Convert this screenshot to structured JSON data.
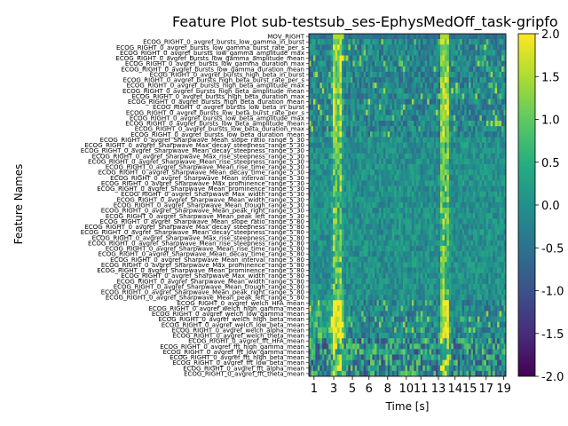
{
  "chart_data": {
    "type": "heatmap",
    "title": "Feature Plot sub-testsub_ses-EphysMedOff_task-gripfo",
    "xlabel": "Time [s]",
    "ylabel": "Feature Names",
    "x_ticks": [
      "1",
      "3",
      "5",
      "6",
      "8",
      "10",
      "11",
      "13",
      "14",
      "15",
      "17",
      "19"
    ],
    "x_range": [
      0.5,
      19.5
    ],
    "colorbar": {
      "min": -2.0,
      "max": 2.0,
      "ticks": [
        "2.0",
        "1.5",
        "1.0",
        "0.5",
        "0.0",
        "-0.5",
        "-1.0",
        "-1.5",
        "-2.0"
      ],
      "colormap": "viridis"
    },
    "hot_columns": [
      3,
      3.5,
      13.4,
      13.8
    ],
    "features": [
      "MOV_RIGHT",
      "ECOG_RIGHT_0_avgref_bursts_low_gamma_in_burst",
      "ECOG_RIGHT_0_avgref_bursts_low_gamma_burst_rate_per_s",
      "ECOG_RIGHT_0_avgref_bursts_low_gamma_amplitude_max",
      "ECOG_RIGHT_0_avgref_bursts_low_gamma_amplitude_mean",
      "ECOG_RIGHT_0_avgref_bursts_low_gamma_duration_max",
      "ECOG_RIGHT_0_avgref_bursts_low_gamma_duration_mean",
      "ECOG_RIGHT_0_avgref_bursts_high_beta_in_burst",
      "ECOG_RIGHT_0_avgref_bursts_high_beta_burst_rate_per_s",
      "ECOG_RIGHT_0_avgref_bursts_high_beta_amplitude_max",
      "ECOG_RIGHT_0_avgref_bursts_high_beta_amplitude_mean",
      "ECOG_RIGHT_0_avgref_bursts_high_beta_duration_max",
      "ECOG_RIGHT_0_avgref_bursts_high_beta_duration_mean",
      "ECOG_RIGHT_0_avgref_bursts_low_beta_in_burst",
      "ECOG_RIGHT_0_avgref_bursts_low_beta_burst_rate_per_s",
      "ECOG_RIGHT_0_avgref_bursts_low_beta_amplitude_max",
      "ECOG_RIGHT_0_avgref_bursts_low_beta_amplitude_mean",
      "ECOG_RIGHT_0_avgref_bursts_low_beta_duration_max",
      "ECOG_RIGHT_0_avgref_bursts_low_beta_duration_mean",
      "ECOG_RIGHT_0_avgref_Sharpwave_Mean_slope_ratio_range_5_30",
      "ECOG_RIGHT_0_avgref_Sharpwave_Max_decay_steepness_range_5_30",
      "ECOG_RIGHT_0_avgref_Sharpwave_Mean_decay_steepness_range_5_30",
      "ECOG_RIGHT_0_avgref_Sharpwave_Max_rise_steepness_range_5_30",
      "ECOG_RIGHT_0_avgref_Sharpwave_Mean_rise_steepness_range_5_30",
      "ECOG_RIGHT_0_avgref_Sharpwave_Mean_rise_time_range_5_30",
      "ECOG_RIGHT_0_avgref_Sharpwave_Mean_decay_time_range_5_30",
      "ECOG_RIGHT_0_avgref_Sharpwave_Mean_interval_range_5_30",
      "ECOG_RIGHT_0_avgref_Sharpwave_Max_prominence_range_5_30",
      "ECOG_RIGHT_0_avgref_Sharpwave_Mean_prominence_range_5_30",
      "ECOG_RIGHT_0_avgref_Sharpwave_Max_width_range_5_30",
      "ECOG_RIGHT_0_avgref_Sharpwave_Mean_width_range_5_30",
      "ECOG_RIGHT_0_avgref_Sharpwave_Mean_trough_range_5_30",
      "ECOG_RIGHT_0_avgref_Sharpwave_Mean_peak_right_range_5_30",
      "ECOG_RIGHT_0_avgref_Sharpwave_Mean_peak_left_range_5_30",
      "ECOG_RIGHT_0_avgref_Sharpwave_Mean_slope_ratio_range_5_80",
      "ECOG_RIGHT_0_avgref_Sharpwave_Max_decay_steepness_range_5_80",
      "ECOG_RIGHT_0_avgref_Sharpwave_Mean_decay_steepness_range_5_80",
      "ECOG_RIGHT_0_avgref_Sharpwave_Max_rise_steepness_range_5_80",
      "ECOG_RIGHT_0_avgref_Sharpwave_Mean_rise_steepness_range_5_80",
      "ECOG_RIGHT_0_avgref_Sharpwave_Mean_rise_time_range_5_80",
      "ECOG_RIGHT_0_avgref_Sharpwave_Mean_decay_time_range_5_80",
      "ECOG_RIGHT_0_avgref_Sharpwave_Mean_interval_range_5_80",
      "ECOG_RIGHT_0_avgref_Sharpwave_Max_prominence_range_5_80",
      "ECOG_RIGHT_0_avgref_Sharpwave_Mean_prominence_range_5_80",
      "ECOG_RIGHT_0_avgref_Sharpwave_Max_width_range_5_80",
      "ECOG_RIGHT_0_avgref_Sharpwave_Mean_width_range_5_80",
      "ECOG_RIGHT_0_avgref_Sharpwave_Mean_trough_range_5_80",
      "ECOG_RIGHT_0_avgref_Sharpwave_Mean_peak_right_range_5_80",
      "ECOG_RIGHT_0_avgref_Sharpwave_Mean_peak_left_range_5_80",
      "ECOG_RIGHT_0_avgref_welch_HFA_mean",
      "ECOG_RIGHT_0_avgref_welch_high_gamma_mean",
      "ECOG_RIGHT_0_avgref_welch_low_gamma_mean",
      "ECOG_RIGHT_0_avgref_welch_high_beta_mean",
      "ECOG_RIGHT_0_avgref_welch_low_beta_mean",
      "ECOG_RIGHT_0_avgref_welch_alpha_mean",
      "ECOG_RIGHT_0_avgref_welch_theta_mean",
      "ECOG_RIGHT_0_avgref_fft_HFA_mean",
      "ECOG_RIGHT_0_avgref_fft_high_gamma_mean",
      "ECOG_RIGHT_0_avgref_fft_low_gamma_mean",
      "ECOG_RIGHT_0_avgref_fft_high_beta_mean",
      "ECOG_RIGHT_0_avgref_fft_low_beta_mean",
      "ECOG_RIGHT_0_avgref_fft_alpha_mean",
      "ECOG_RIGHT_0_avgref_fft_theta_mean"
    ]
  }
}
